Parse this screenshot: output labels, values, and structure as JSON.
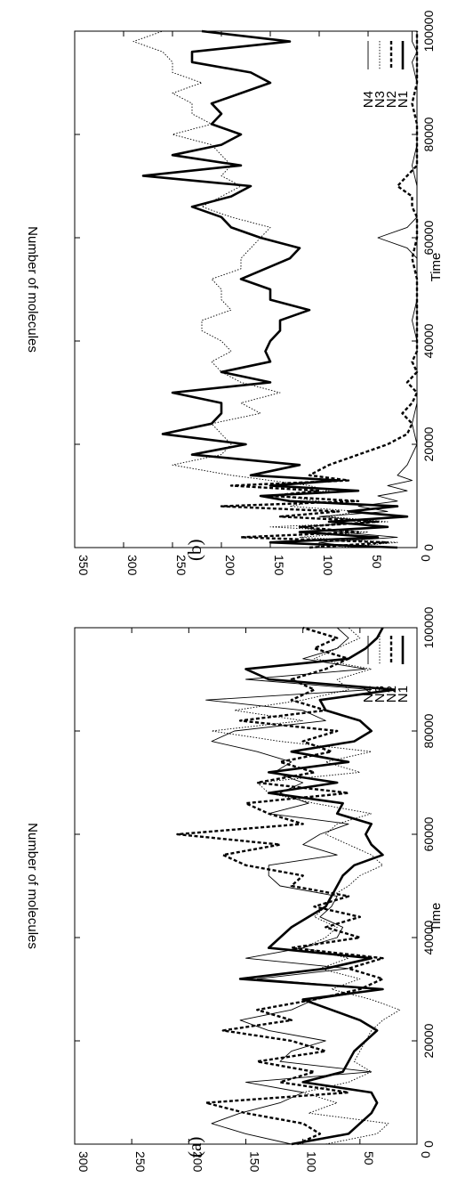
{
  "chart_data": [
    {
      "type": "line",
      "panel_label": "(a)",
      "xlabel": "Time",
      "ylabel": "Number of molecules",
      "xlim": [
        0,
        100000
      ],
      "ylim": [
        0,
        300
      ],
      "xticks": [
        0,
        20000,
        40000,
        60000,
        80000,
        100000
      ],
      "yticks": [
        0,
        50,
        100,
        150,
        200,
        250,
        300
      ],
      "legend_position": "top-right",
      "grid": false,
      "series": [
        {
          "name": "N1",
          "style": "thick-solid",
          "x": [
            0,
            2000,
            4000,
            6000,
            8000,
            10000,
            12000,
            14000,
            16000,
            18000,
            20000,
            22000,
            24000,
            26000,
            28000,
            30000,
            32000,
            34000,
            36000,
            38000,
            40000,
            42000,
            44000,
            46000,
            48000,
            50000,
            52000,
            54000,
            56000,
            58000,
            60000,
            62000,
            64000,
            66000,
            68000,
            70000,
            72000,
            74000,
            76000,
            78000,
            80000,
            82000,
            84000,
            86000,
            88000,
            90000,
            92000,
            94000,
            96000,
            98000,
            100000
          ],
          "y": [
            110,
            60,
            50,
            40,
            35,
            40,
            100,
            65,
            60,
            55,
            45,
            35,
            50,
            75,
            100,
            30,
            155,
            80,
            40,
            130,
            120,
            110,
            95,
            80,
            75,
            70,
            65,
            55,
            30,
            40,
            45,
            40,
            70,
            65,
            130,
            70,
            130,
            60,
            110,
            55,
            40,
            50,
            80,
            85,
            20,
            130,
            150,
            60,
            45,
            35,
            30
          ]
        },
        {
          "name": "N2",
          "style": "thick-dashed",
          "x": [
            0,
            2000,
            4000,
            6000,
            8000,
            10000,
            12000,
            14000,
            16000,
            18000,
            20000,
            22000,
            24000,
            26000,
            28000,
            30000,
            32000,
            34000,
            36000,
            38000,
            40000,
            42000,
            44000,
            46000,
            48000,
            50000,
            52000,
            54000,
            56000,
            58000,
            60000,
            62000,
            64000,
            66000,
            68000,
            70000,
            72000,
            74000,
            76000,
            78000,
            80000,
            82000,
            84000,
            86000,
            88000,
            90000,
            92000,
            94000,
            96000,
            98000,
            100000
          ],
          "y": [
            105,
            85,
            100,
            150,
            185,
            60,
            120,
            90,
            140,
            80,
            110,
            170,
            110,
            140,
            90,
            50,
            30,
            60,
            30,
            110,
            50,
            80,
            50,
            90,
            60,
            110,
            100,
            150,
            170,
            120,
            210,
            100,
            130,
            150,
            60,
            140,
            90,
            120,
            75,
            100,
            70,
            155,
            80,
            110,
            90,
            110,
            80,
            60,
            90,
            70,
            100
          ]
        },
        {
          "name": "N3",
          "style": "thin-dotted",
          "x": [
            0,
            2000,
            4000,
            6000,
            8000,
            10000,
            12000,
            14000,
            16000,
            18000,
            20000,
            22000,
            24000,
            26000,
            28000,
            30000,
            32000,
            34000,
            36000,
            38000,
            40000,
            42000,
            44000,
            46000,
            48000,
            50000,
            52000,
            54000,
            56000,
            58000,
            60000,
            62000,
            64000,
            66000,
            68000,
            70000,
            72000,
            74000,
            76000,
            78000,
            80000,
            82000,
            84000,
            86000,
            88000,
            90000,
            92000,
            94000,
            96000,
            98000,
            100000
          ],
          "y": [
            80,
            35,
            25,
            95,
            70,
            100,
            60,
            40,
            55,
            50,
            45,
            40,
            30,
            15,
            40,
            75,
            50,
            85,
            60,
            100,
            80,
            70,
            90,
            80,
            75,
            60,
            50,
            30,
            40,
            60,
            80,
            70,
            40,
            90,
            130,
            140,
            50,
            80,
            40,
            120,
            180,
            100,
            160,
            100,
            60,
            70,
            40,
            90,
            70,
            50,
            60
          ]
        },
        {
          "name": "N4",
          "style": "thin-solid",
          "x": [
            0,
            2000,
            4000,
            6000,
            8000,
            10000,
            12000,
            14000,
            16000,
            18000,
            20000,
            22000,
            24000,
            26000,
            28000,
            30000,
            32000,
            34000,
            36000,
            38000,
            40000,
            42000,
            44000,
            46000,
            48000,
            50000,
            52000,
            54000,
            56000,
            58000,
            60000,
            62000,
            64000,
            66000,
            68000,
            70000,
            72000,
            74000,
            76000,
            78000,
            80000,
            82000,
            84000,
            86000,
            88000,
            90000,
            92000,
            94000,
            96000,
            98000,
            100000
          ],
          "y": [
            110,
            150,
            180,
            155,
            120,
            100,
            150,
            40,
            120,
            110,
            80,
            130,
            155,
            110,
            90,
            30,
            140,
            60,
            150,
            100,
            70,
            65,
            85,
            75,
            70,
            120,
            130,
            130,
            70,
            100,
            85,
            60,
            130,
            95,
            120,
            100,
            125,
            110,
            140,
            180,
            160,
            80,
            100,
            185,
            40,
            150,
            45,
            100,
            70,
            60,
            70
          ]
        }
      ]
    },
    {
      "type": "line",
      "panel_label": "(b)",
      "xlabel": "Time",
      "ylabel": "Number of molecules",
      "xlim": [
        0,
        100000
      ],
      "ylim": [
        0,
        350
      ],
      "xticks": [
        0,
        20000,
        40000,
        60000,
        80000,
        100000
      ],
      "yticks": [
        0,
        50,
        100,
        150,
        200,
        250,
        300,
        350
      ],
      "legend_position": "top-right",
      "grid": false,
      "series": [
        {
          "name": "N1",
          "style": "thick-solid",
          "x": [
            0,
            1000,
            2000,
            3000,
            4000,
            5000,
            6000,
            7000,
            8000,
            9000,
            10000,
            11000,
            12000,
            13000,
            14000,
            16000,
            18000,
            20000,
            22000,
            24000,
            26000,
            28000,
            30000,
            32000,
            34000,
            36000,
            38000,
            40000,
            42000,
            44000,
            46000,
            48000,
            50000,
            52000,
            54000,
            56000,
            58000,
            60000,
            62000,
            64000,
            66000,
            68000,
            70000,
            72000,
            74000,
            76000,
            78000,
            80000,
            82000,
            84000,
            86000,
            88000,
            90000,
            92000,
            94000,
            96000,
            98000,
            100000
          ],
          "y": [
            20,
            150,
            40,
            120,
            30,
            90,
            10,
            70,
            20,
            130,
            160,
            60,
            150,
            80,
            170,
            120,
            230,
            175,
            260,
            210,
            200,
            200,
            250,
            150,
            200,
            150,
            155,
            150,
            140,
            140,
            110,
            150,
            150,
            180,
            155,
            130,
            120,
            160,
            190,
            200,
            230,
            190,
            170,
            280,
            180,
            250,
            200,
            180,
            210,
            200,
            210,
            180,
            150,
            170,
            230,
            230,
            130,
            220
          ]
        },
        {
          "name": "N2",
          "style": "thick-dashed",
          "x": [
            0,
            1000,
            2000,
            3000,
            4000,
            5000,
            6000,
            7000,
            8000,
            9000,
            10000,
            11000,
            12000,
            13000,
            14000,
            16000,
            18000,
            20000,
            22000,
            24000,
            26000,
            28000,
            30000,
            32000,
            34000,
            36000,
            38000,
            40000,
            44000,
            48000,
            52000,
            56000,
            60000,
            64000,
            66000,
            68000,
            70000,
            74000,
            78000,
            82000,
            86000,
            90000,
            94000,
            98000,
            100000
          ],
          "y": [
            110,
            30,
            180,
            60,
            120,
            40,
            140,
            80,
            200,
            60,
            150,
            100,
            190,
            70,
            110,
            90,
            60,
            30,
            10,
            5,
            15,
            5,
            0,
            10,
            0,
            5,
            0,
            0,
            0,
            0,
            0,
            5,
            0,
            0,
            5,
            5,
            20,
            0,
            0,
            0,
            5,
            0,
            0,
            0,
            0
          ]
        },
        {
          "name": "N3",
          "style": "thin-dotted",
          "x": [
            0,
            1000,
            2000,
            3000,
            4000,
            5000,
            6000,
            7000,
            8000,
            9000,
            10000,
            11000,
            12000,
            13000,
            14000,
            16000,
            18000,
            20000,
            22000,
            24000,
            26000,
            28000,
            30000,
            32000,
            34000,
            36000,
            38000,
            40000,
            42000,
            44000,
            46000,
            48000,
            50000,
            52000,
            54000,
            56000,
            58000,
            60000,
            62000,
            64000,
            66000,
            68000,
            70000,
            72000,
            74000,
            76000,
            78000,
            80000,
            82000,
            84000,
            86000,
            88000,
            90000,
            92000,
            94000,
            96000,
            98000,
            100000
          ],
          "y": [
            80,
            20,
            120,
            50,
            150,
            30,
            90,
            60,
            130,
            100,
            140,
            90,
            110,
            150,
            190,
            250,
            200,
            190,
            200,
            210,
            160,
            180,
            140,
            180,
            200,
            210,
            190,
            200,
            220,
            220,
            190,
            200,
            200,
            210,
            180,
            180,
            170,
            160,
            150,
            190,
            220,
            200,
            180,
            200,
            190,
            200,
            210,
            250,
            210,
            230,
            230,
            250,
            220,
            250,
            250,
            260,
            290,
            260
          ]
        },
        {
          "name": "N4",
          "style": "thin-solid",
          "x": [
            0,
            1000,
            2000,
            3000,
            4000,
            5000,
            6000,
            7000,
            8000,
            9000,
            10000,
            11000,
            12000,
            13000,
            14000,
            16000,
            18000,
            20000,
            24000,
            28000,
            32000,
            36000,
            40000,
            44000,
            48000,
            52000,
            56000,
            58000,
            60000,
            62000,
            64000,
            66000,
            68000,
            70000,
            74000,
            78000,
            82000,
            86000,
            90000,
            94000,
            96000,
            98000,
            100000
          ],
          "y": [
            60,
            100,
            20,
            80,
            120,
            40,
            100,
            30,
            60,
            20,
            40,
            10,
            30,
            5,
            20,
            10,
            5,
            0,
            5,
            0,
            0,
            0,
            0,
            5,
            0,
            0,
            0,
            10,
            40,
            10,
            0,
            0,
            0,
            0,
            5,
            0,
            0,
            0,
            0,
            5,
            0,
            5,
            5
          ]
        }
      ]
    }
  ]
}
